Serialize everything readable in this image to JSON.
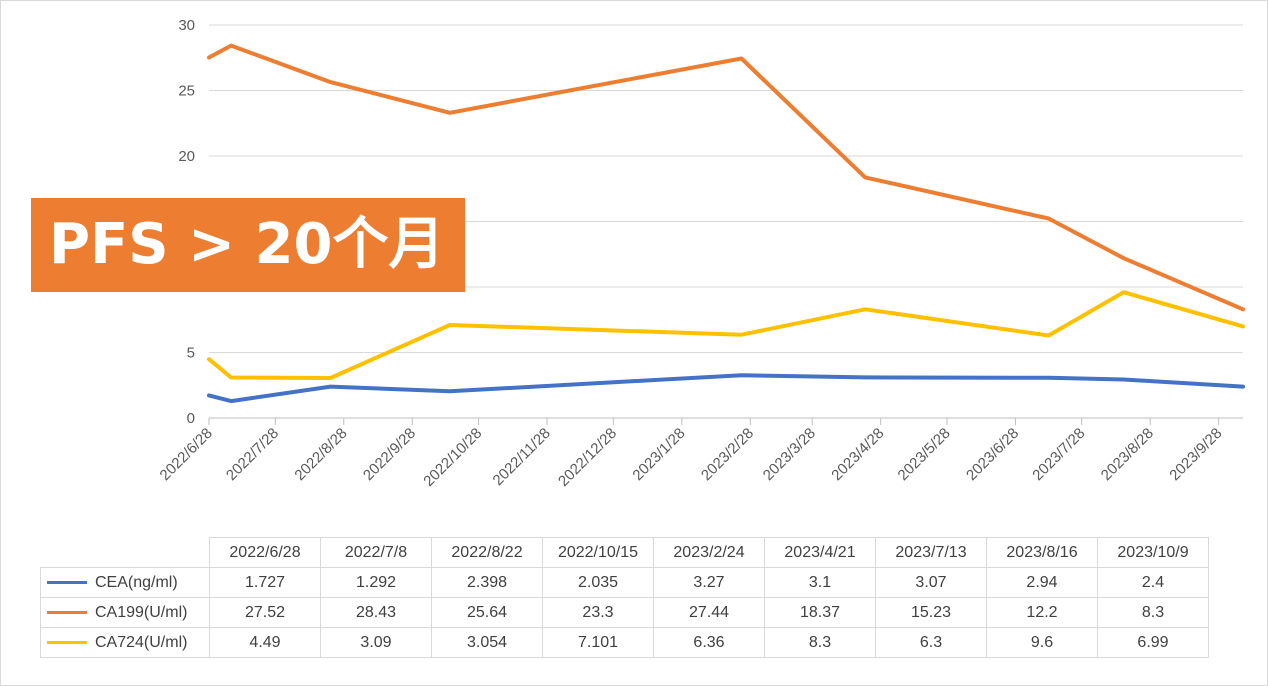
{
  "banner": "PFS > 20个月",
  "chart_data": {
    "type": "line",
    "y_ticks": [
      "0",
      "5",
      "10",
      "15",
      "20",
      "25",
      "30"
    ],
    "ylim": [
      0,
      30
    ],
    "x_axis_labels": [
      "2022/6/28",
      "2022/7/28",
      "2022/8/28",
      "2022/9/28",
      "2022/10/28",
      "2022/11/28",
      "2022/12/28",
      "2023/1/28",
      "2023/2/28",
      "2023/3/28",
      "2023/4/28",
      "2023/5/28",
      "2023/6/28",
      "2023/7/28",
      "2023/8/28",
      "2023/9/28"
    ],
    "xlim": [
      "2022/6/28",
      "2023/10/9"
    ],
    "grid": "horizontal",
    "categories": [
      "2022/6/28",
      "2022/7/8",
      "2022/8/22",
      "2022/10/15",
      "2023/2/24",
      "2023/4/21",
      "2023/7/13",
      "2023/8/16",
      "2023/10/9"
    ],
    "series": [
      {
        "name": "CEA(ng/ml)",
        "color": "#4472c4",
        "values": [
          1.727,
          1.292,
          2.398,
          2.035,
          3.27,
          3.1,
          3.07,
          2.94,
          2.4
        ],
        "display": [
          "1.727",
          "1.292",
          "2.398",
          "2.035",
          "3.27",
          "3.1",
          "3.07",
          "2.94",
          "2.4"
        ]
      },
      {
        "name": "CA199(U/ml)",
        "color": "#ed7d31",
        "values": [
          27.52,
          28.43,
          25.64,
          23.3,
          27.44,
          18.37,
          15.23,
          12.2,
          8.3
        ],
        "display": [
          "27.52",
          "28.43",
          "25.64",
          "23.3",
          "27.44",
          "18.37",
          "15.23",
          "12.2",
          "8.3"
        ]
      },
      {
        "name": "CA724(U/ml)",
        "color": "#ffc000",
        "values": [
          4.49,
          3.09,
          3.054,
          7.101,
          6.36,
          8.3,
          6.3,
          9.6,
          6.99
        ],
        "display": [
          "4.49",
          "3.09",
          "3.054",
          "7.101",
          "6.36",
          "8.3",
          "6.3",
          "9.6",
          "6.99"
        ]
      }
    ]
  }
}
